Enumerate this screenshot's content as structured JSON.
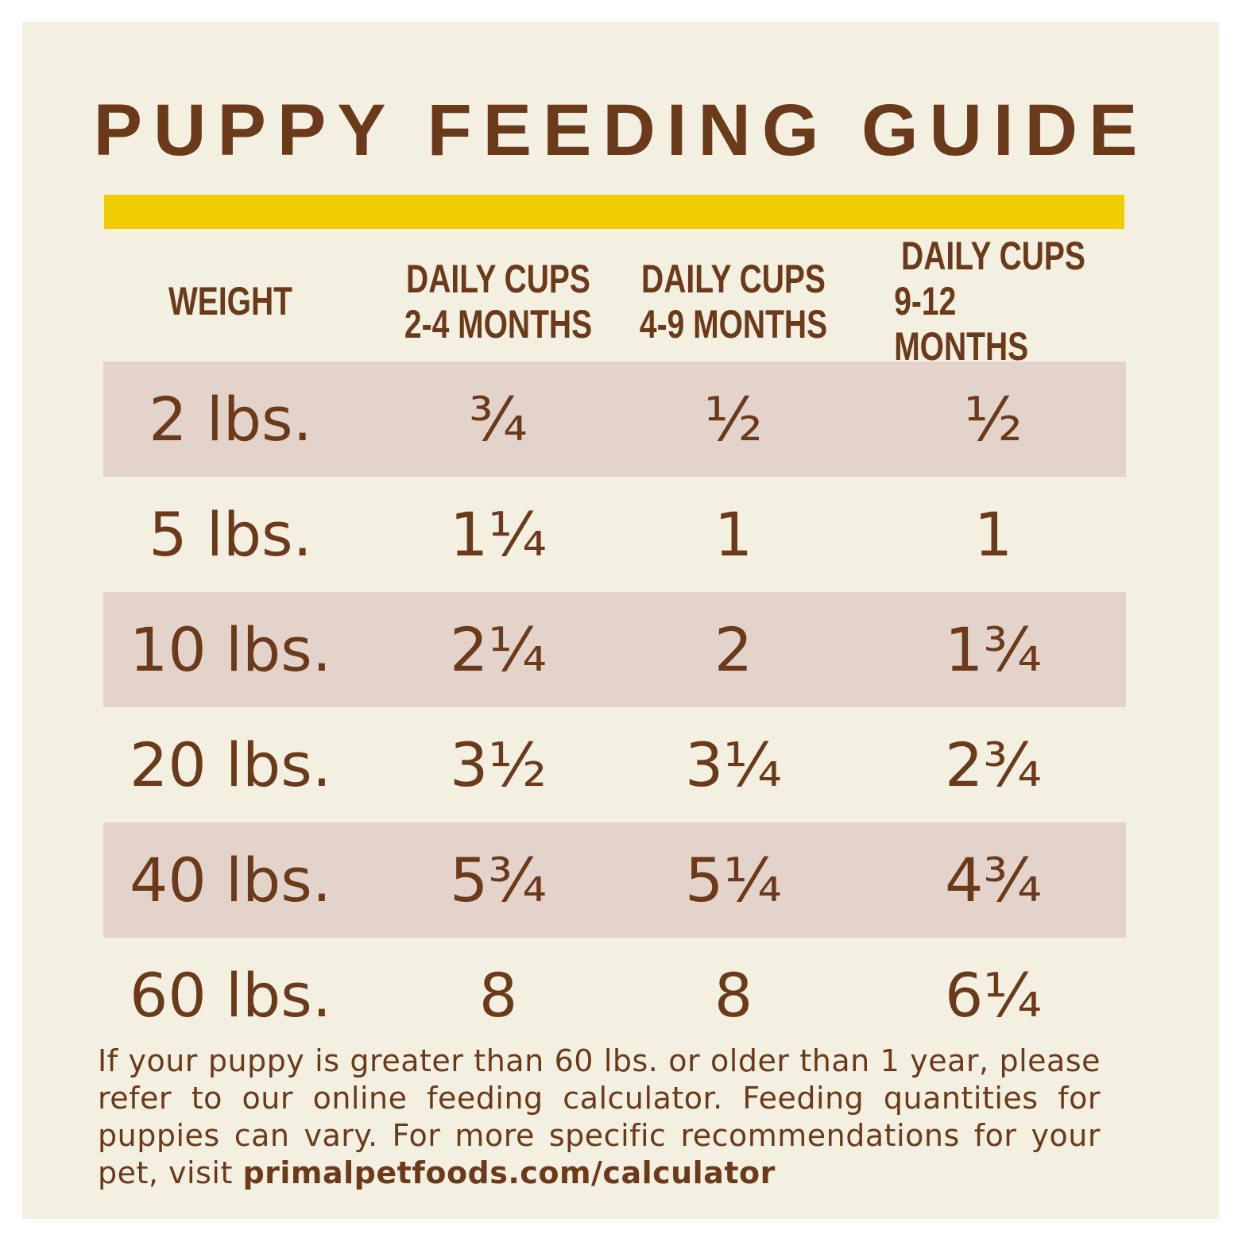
{
  "title": "PUPPY FEEDING GUIDE",
  "table": {
    "headers": [
      [
        "WEIGHT"
      ],
      [
        "DAILY CUPS",
        "2-4 MONTHS"
      ],
      [
        "DAILY CUPS",
        "4-9 MONTHS"
      ],
      [
        "DAILY CUPS",
        "9-12 MONTHS"
      ]
    ],
    "rows": [
      [
        "2 lbs.",
        "¾",
        "½",
        "½"
      ],
      [
        "5 lbs.",
        "1¼",
        "1",
        "1"
      ],
      [
        "10 lbs.",
        "2¼",
        "2",
        "1¾"
      ],
      [
        "20 lbs.",
        "3½",
        "3¼",
        "2¾"
      ],
      [
        "40 lbs.",
        "5¾",
        "5¼",
        "4¾"
      ],
      [
        "60 lbs.",
        "8",
        "8",
        "6¼"
      ]
    ]
  },
  "note": {
    "text": "If your puppy is greater than 60 lbs. or older than 1 year, please refer to our online feeding calculator. Feeding quantities for puppies can vary. For more specific recommendations for your pet, visit ",
    "link": "primalpetfoods.com/calculator"
  }
}
